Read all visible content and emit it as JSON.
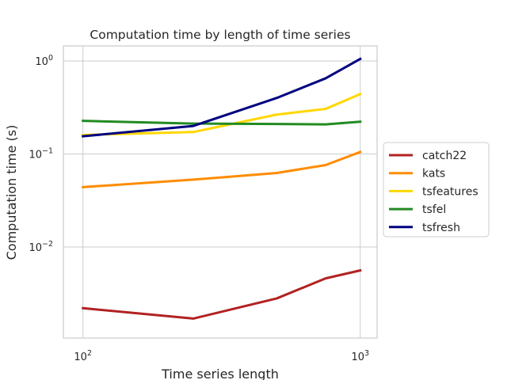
{
  "chart_data": {
    "type": "line",
    "title": "Computation time by length of time series",
    "xlabel": "Time series length",
    "ylabel": "Computation time (s)",
    "xscale": "log",
    "yscale": "log",
    "xlim": [
      85,
      1150
    ],
    "ylim": [
      0.00105,
      1.45
    ],
    "xticks": [
      {
        "base": "10",
        "exp": "2",
        "value": 100
      },
      {
        "base": "10",
        "exp": "3",
        "value": 1000
      }
    ],
    "yticks": [
      {
        "base": "10",
        "exp": "−2",
        "value": 0.01
      },
      {
        "base": "10",
        "exp": "−1",
        "value": 0.1
      },
      {
        "base": "10",
        "exp": "0",
        "value": 1
      }
    ],
    "grid": true,
    "legend_position": "right",
    "x": [
      100,
      250,
      500,
      750,
      1000
    ],
    "series": [
      {
        "name": "catch22",
        "color": "#b22222",
        "values": [
          0.0022,
          0.0017,
          0.0028,
          0.0046,
          0.0056
        ]
      },
      {
        "name": "kats",
        "color": "#ff8c00",
        "values": [
          0.044,
          0.053,
          0.0625,
          0.076,
          0.105
        ]
      },
      {
        "name": "tsfeatures",
        "color": "#ffd700",
        "values": [
          0.16,
          0.172,
          0.265,
          0.305,
          0.44
        ]
      },
      {
        "name": "tsfel",
        "color": "#228b22",
        "values": [
          0.227,
          0.212,
          0.21,
          0.208,
          0.222
        ]
      },
      {
        "name": "tsfresh",
        "color": "#000080",
        "values": [
          0.155,
          0.2,
          0.4,
          0.65,
          1.05
        ]
      }
    ]
  }
}
